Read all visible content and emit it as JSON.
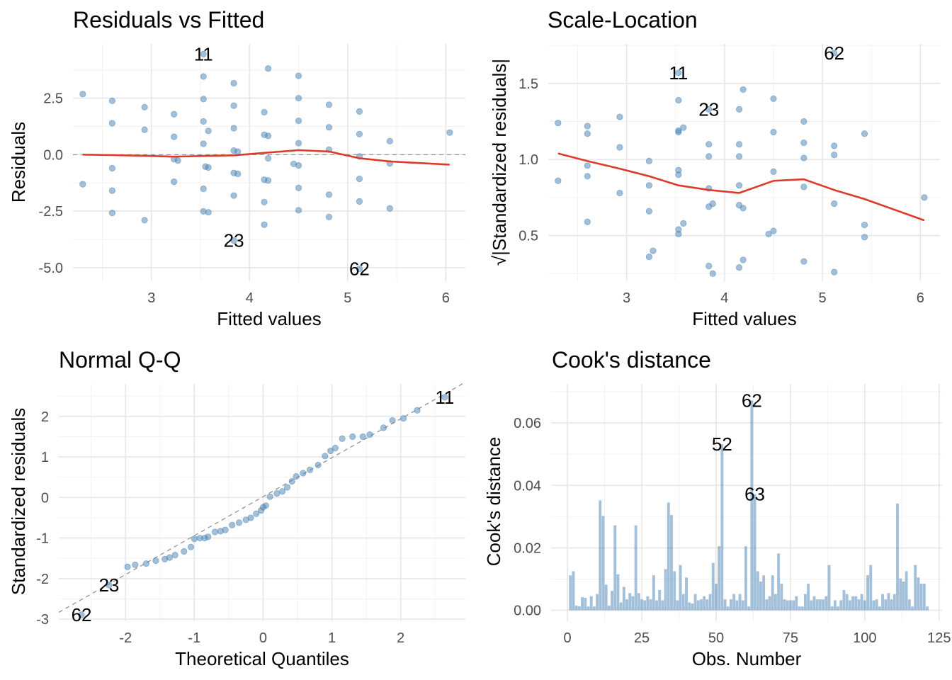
{
  "colors": {
    "point": "#4682B4",
    "smooth": "#DD3B2A",
    "grid_major": "#E6E6E6",
    "grid_minor": "#F2F2F2",
    "ref_line": "#8C8C8C"
  },
  "chart_data": [
    {
      "id": "resid_fitted",
      "type": "scatter",
      "title": "Residuals vs Fitted",
      "xlabel": "Fitted values",
      "ylabel": "Residuals",
      "xlim": [
        2.2,
        6.2
      ],
      "ylim": [
        -5.6,
        4.9
      ],
      "xticks": [
        3,
        4,
        5,
        6
      ],
      "xtick_labels": [
        "3",
        "4",
        "5",
        "6"
      ],
      "yticks": [
        -5.0,
        -2.5,
        0.0,
        2.5
      ],
      "ytick_labels": [
        "-5.0",
        "-2.5",
        "0.0",
        "2.5"
      ],
      "ref_line_y": 0,
      "points": [
        [
          2.3,
          2.68
        ],
        [
          2.3,
          -1.31
        ],
        [
          2.6,
          2.38
        ],
        [
          2.6,
          1.39
        ],
        [
          2.6,
          -0.6
        ],
        [
          2.6,
          -1.59
        ],
        [
          2.6,
          -2.58
        ],
        [
          2.93,
          2.1
        ],
        [
          2.93,
          1.1
        ],
        [
          2.93,
          -2.9
        ],
        [
          3.23,
          1.79
        ],
        [
          3.23,
          0.79
        ],
        [
          3.23,
          -0.2
        ],
        [
          3.23,
          -1.2
        ],
        [
          3.27,
          -0.26
        ],
        [
          3.53,
          4.45
        ],
        [
          3.53,
          3.46
        ],
        [
          3.53,
          2.46
        ],
        [
          3.53,
          1.47
        ],
        [
          3.53,
          0.48
        ],
        [
          3.53,
          -1.51
        ],
        [
          3.53,
          -2.51
        ],
        [
          3.55,
          -0.53
        ],
        [
          3.58,
          1.05
        ],
        [
          3.58,
          -0.57
        ],
        [
          3.58,
          -2.55
        ],
        [
          3.84,
          3.16
        ],
        [
          3.84,
          2.17
        ],
        [
          3.84,
          1.17
        ],
        [
          3.84,
          0.18
        ],
        [
          3.84,
          -0.81
        ],
        [
          3.84,
          -1.81
        ],
        [
          3.84,
          -3.8
        ],
        [
          3.88,
          0.13
        ],
        [
          3.88,
          -0.85
        ],
        [
          4.15,
          1.88
        ],
        [
          4.15,
          0.88
        ],
        [
          4.15,
          -1.11
        ],
        [
          4.15,
          -2.1
        ],
        [
          4.15,
          -3.1
        ],
        [
          4.19,
          3.81
        ],
        [
          4.19,
          0.83
        ],
        [
          4.19,
          -0.16
        ],
        [
          4.19,
          -1.14
        ],
        [
          4.45,
          -0.41
        ],
        [
          4.5,
          3.49
        ],
        [
          4.5,
          2.5
        ],
        [
          4.5,
          1.5
        ],
        [
          4.5,
          0.51
        ],
        [
          4.5,
          -0.48
        ],
        [
          4.5,
          -1.47
        ],
        [
          4.5,
          -2.46
        ],
        [
          4.81,
          2.21
        ],
        [
          4.81,
          1.21
        ],
        [
          4.81,
          0.22
        ],
        [
          4.81,
          -1.77
        ],
        [
          4.81,
          -2.76
        ],
        [
          5.12,
          1.91
        ],
        [
          5.12,
          0.91
        ],
        [
          5.12,
          -0.08
        ],
        [
          5.12,
          -1.07
        ],
        [
          5.12,
          -2.07
        ],
        [
          5.12,
          -5.05
        ],
        [
          5.43,
          0.6
        ],
        [
          5.43,
          -0.39
        ],
        [
          5.43,
          -2.38
        ],
        [
          6.04,
          0.98
        ]
      ],
      "smooth": [
        [
          2.3,
          0.0
        ],
        [
          2.6,
          -0.02
        ],
        [
          2.93,
          -0.05
        ],
        [
          3.23,
          -0.09
        ],
        [
          3.53,
          -0.06
        ],
        [
          3.84,
          -0.03
        ],
        [
          4.15,
          0.08
        ],
        [
          4.5,
          0.2
        ],
        [
          4.81,
          0.14
        ],
        [
          5.12,
          -0.16
        ],
        [
          5.43,
          -0.3
        ],
        [
          6.04,
          -0.44
        ]
      ],
      "annotations": [
        {
          "text": "11",
          "x": 3.53,
          "y": 4.45
        },
        {
          "text": "23",
          "x": 3.84,
          "y": -3.8
        },
        {
          "text": "62",
          "x": 5.12,
          "y": -5.05
        }
      ]
    },
    {
      "id": "scale_location",
      "type": "scatter",
      "title": "Scale-Location",
      "xlabel": "Fitted values",
      "ylabel": "√|Standardized residuals|",
      "xlim": [
        2.2,
        6.2
      ],
      "ylim": [
        0.2,
        1.76
      ],
      "xticks": [
        3,
        4,
        5,
        6
      ],
      "xtick_labels": [
        "3",
        "4",
        "5",
        "6"
      ],
      "yticks": [
        0.5,
        1.0,
        1.5
      ],
      "ytick_labels": [
        "0.5",
        "1.0",
        "1.5"
      ],
      "points": [
        [
          2.3,
          1.24
        ],
        [
          2.3,
          0.86
        ],
        [
          2.6,
          1.17
        ],
        [
          2.6,
          1.22
        ],
        [
          2.6,
          0.96
        ],
        [
          2.6,
          0.89
        ],
        [
          2.6,
          0.59
        ],
        [
          2.93,
          1.28
        ],
        [
          2.93,
          1.08
        ],
        [
          2.93,
          0.78
        ],
        [
          3.23,
          0.99
        ],
        [
          3.23,
          0.83
        ],
        [
          3.23,
          0.66
        ],
        [
          3.23,
          0.36
        ],
        [
          3.27,
          0.4
        ],
        [
          3.53,
          1.57
        ],
        [
          3.53,
          1.39
        ],
        [
          3.53,
          1.18
        ],
        [
          3.53,
          1.19
        ],
        [
          3.53,
          0.93
        ],
        [
          3.53,
          0.9
        ],
        [
          3.53,
          0.54
        ],
        [
          3.53,
          0.51
        ],
        [
          3.58,
          1.21
        ],
        [
          3.58,
          0.58
        ],
        [
          3.84,
          1.33
        ],
        [
          3.84,
          1.1
        ],
        [
          3.84,
          1.02
        ],
        [
          3.84,
          0.81
        ],
        [
          3.84,
          0.69
        ],
        [
          3.84,
          0.3
        ],
        [
          3.88,
          0.71
        ],
        [
          3.88,
          0.25
        ],
        [
          4.15,
          1.33
        ],
        [
          4.15,
          1.1
        ],
        [
          4.15,
          1.02
        ],
        [
          4.15,
          0.83
        ],
        [
          4.15,
          0.7
        ],
        [
          4.15,
          0.29
        ],
        [
          4.19,
          1.46
        ],
        [
          4.19,
          0.68
        ],
        [
          4.19,
          0.34
        ],
        [
          4.45,
          0.51
        ],
        [
          4.5,
          1.4
        ],
        [
          4.5,
          1.18
        ],
        [
          4.5,
          0.92
        ],
        [
          4.5,
          0.53
        ],
        [
          4.81,
          1.25
        ],
        [
          4.81,
          1.11
        ],
        [
          4.81,
          1.01
        ],
        [
          4.81,
          0.82
        ],
        [
          4.81,
          0.33
        ],
        [
          5.12,
          1.7
        ],
        [
          5.12,
          1.09
        ],
        [
          5.12,
          1.03
        ],
        [
          5.12,
          0.71
        ],
        [
          5.12,
          0.26
        ],
        [
          5.43,
          1.17
        ],
        [
          5.43,
          0.57
        ],
        [
          5.43,
          0.49
        ],
        [
          6.04,
          0.75
        ]
      ],
      "smooth": [
        [
          2.3,
          1.04
        ],
        [
          2.6,
          0.99
        ],
        [
          2.93,
          0.94
        ],
        [
          3.23,
          0.89
        ],
        [
          3.53,
          0.83
        ],
        [
          3.84,
          0.8
        ],
        [
          4.15,
          0.78
        ],
        [
          4.5,
          0.86
        ],
        [
          4.81,
          0.87
        ],
        [
          5.12,
          0.8
        ],
        [
          5.43,
          0.74
        ],
        [
          6.04,
          0.6
        ]
      ],
      "annotations": [
        {
          "text": "11",
          "x": 3.53,
          "y": 1.57
        },
        {
          "text": "23",
          "x": 3.84,
          "y": 1.33
        },
        {
          "text": "62",
          "x": 5.12,
          "y": 1.7
        }
      ]
    },
    {
      "id": "normal_qq",
      "type": "scatter",
      "title": "Normal Q-Q",
      "xlabel": "Theoretical Quantiles",
      "ylabel": "Standardized residuals",
      "xlim": [
        -2.97,
        2.94
      ],
      "ylim": [
        -3.05,
        2.8
      ],
      "xticks": [
        -2,
        -1,
        0,
        1,
        2
      ],
      "xtick_labels": [
        "-2",
        "-1",
        "0",
        "1",
        "2"
      ],
      "yticks": [
        -3,
        -2,
        -1,
        0,
        1,
        2
      ],
      "ytick_labels": [
        "-3",
        "-2",
        "-1",
        "0",
        "1",
        "2"
      ],
      "ref_line": {
        "slope": 0.96,
        "intercept": 0.02
      },
      "qq_points": [
        [
          -2.64,
          -2.89
        ],
        [
          -2.24,
          -2.16
        ],
        [
          -1.97,
          -1.71
        ],
        [
          -1.86,
          -1.66
        ],
        [
          -1.7,
          -1.63
        ],
        [
          -1.56,
          -1.56
        ],
        [
          -1.43,
          -1.52
        ],
        [
          -1.36,
          -1.48
        ],
        [
          -1.28,
          -1.42
        ],
        [
          -1.15,
          -1.33
        ],
        [
          -1.05,
          -1.22
        ],
        [
          -1.0,
          -1.02
        ],
        [
          -0.92,
          -1.0
        ],
        [
          -0.85,
          -1.0
        ],
        [
          -0.8,
          -0.97
        ],
        [
          -0.7,
          -0.85
        ],
        [
          -0.62,
          -0.83
        ],
        [
          -0.55,
          -0.8
        ],
        [
          -0.45,
          -0.68
        ],
        [
          -0.35,
          -0.62
        ],
        [
          -0.25,
          -0.55
        ],
        [
          -0.18,
          -0.5
        ],
        [
          -0.1,
          -0.4
        ],
        [
          -0.03,
          -0.32
        ],
        [
          0.0,
          -0.24
        ],
        [
          0.04,
          -0.2
        ],
        [
          0.1,
          0.02
        ],
        [
          0.2,
          0.1
        ],
        [
          0.28,
          0.15
        ],
        [
          0.35,
          0.25
        ],
        [
          0.42,
          0.4
        ],
        [
          0.48,
          0.52
        ],
        [
          0.58,
          0.6
        ],
        [
          0.68,
          0.68
        ],
        [
          0.8,
          0.8
        ],
        [
          0.9,
          1.02
        ],
        [
          0.98,
          1.15
        ],
        [
          1.05,
          1.22
        ],
        [
          1.15,
          1.45
        ],
        [
          1.3,
          1.5
        ],
        [
          1.45,
          1.5
        ],
        [
          1.55,
          1.55
        ],
        [
          1.75,
          1.72
        ],
        [
          1.88,
          1.9
        ],
        [
          2.04,
          1.95
        ],
        [
          2.24,
          2.15
        ],
        [
          2.64,
          2.47
        ]
      ],
      "annotations": [
        {
          "text": "11",
          "x": 2.64,
          "y": 2.47
        },
        {
          "text": "23",
          "x": -2.24,
          "y": -2.16
        },
        {
          "text": "62",
          "x": -2.64,
          "y": -2.89
        }
      ]
    },
    {
      "id": "cooks_distance",
      "type": "bar",
      "title": "Cook's distance",
      "xlabel": "Obs. Number",
      "ylabel": "Cook's distance",
      "xlim": [
        -5.5,
        126
      ],
      "ylim": [
        -0.0035,
        0.0725
      ],
      "xticks": [
        0,
        25,
        50,
        75,
        100,
        125
      ],
      "xtick_labels": [
        "0",
        "25",
        "50",
        "75",
        "100",
        "125"
      ],
      "yticks": [
        0.0,
        0.02,
        0.04,
        0.06
      ],
      "ytick_labels": [
        "0.00",
        "0.02",
        "0.04",
        "0.06"
      ],
      "values": [
        0.0112,
        0.0125,
        0.0015,
        0.0013,
        0.0042,
        0.004,
        0.0012,
        0.0045,
        0.0012,
        0.0052,
        0.0352,
        0.0302,
        0.0082,
        0.0015,
        0.0062,
        0.0272,
        0.0115,
        0.0025,
        0.0075,
        0.0035,
        0.0055,
        0.0045,
        0.0272,
        0.0055,
        0.0035,
        0.0032,
        0.0045,
        0.0035,
        0.0112,
        0.0032,
        0.0065,
        0.0032,
        0.0132,
        0.0345,
        0.0305,
        0.0125,
        0.0032,
        0.0145,
        0.0052,
        0.0105,
        0.0025,
        0.0022,
        0.0052,
        0.0032,
        0.0035,
        0.0045,
        0.0035,
        0.0052,
        0.0152,
        0.0085,
        0.0205,
        0.0532,
        0.0035,
        0.0012,
        0.0035,
        0.0052,
        0.0032,
        0.0052,
        0.0032,
        0.0205,
        0.0012,
        0.0672,
        0.0372,
        0.0125,
        0.0092,
        0.0112,
        0.0035,
        0.0045,
        0.0112,
        0.0052,
        0.0182,
        0.0085,
        0.0035,
        0.0032,
        0.0032,
        0.0032,
        0.0045,
        0.0012,
        0.0012,
        0.0052,
        0.0085,
        0.0032,
        0.0045,
        0.0035,
        0.0035,
        0.0035,
        0.0045,
        0.0145,
        0.0012,
        0.0032,
        0.0012,
        0.0032,
        0.0065,
        0.0052,
        0.0032,
        0.0045,
        0.0045,
        0.0035,
        0.0052,
        0.0032,
        0.0112,
        0.0145,
        0.0032,
        0.0035,
        0.0012,
        0.0052,
        0.0035,
        0.0055,
        0.0035,
        0.0052,
        0.0342,
        0.0102,
        0.0092,
        0.0125,
        0.0035,
        0.0012,
        0.0145,
        0.0105,
        0.0085,
        0.0085,
        0.0012
      ],
      "annotations": [
        {
          "text": "62",
          "x": 62,
          "y": 0.0672
        },
        {
          "text": "52",
          "x": 52,
          "y": 0.0532
        },
        {
          "text": "63",
          "x": 63,
          "y": 0.0372
        }
      ]
    }
  ]
}
